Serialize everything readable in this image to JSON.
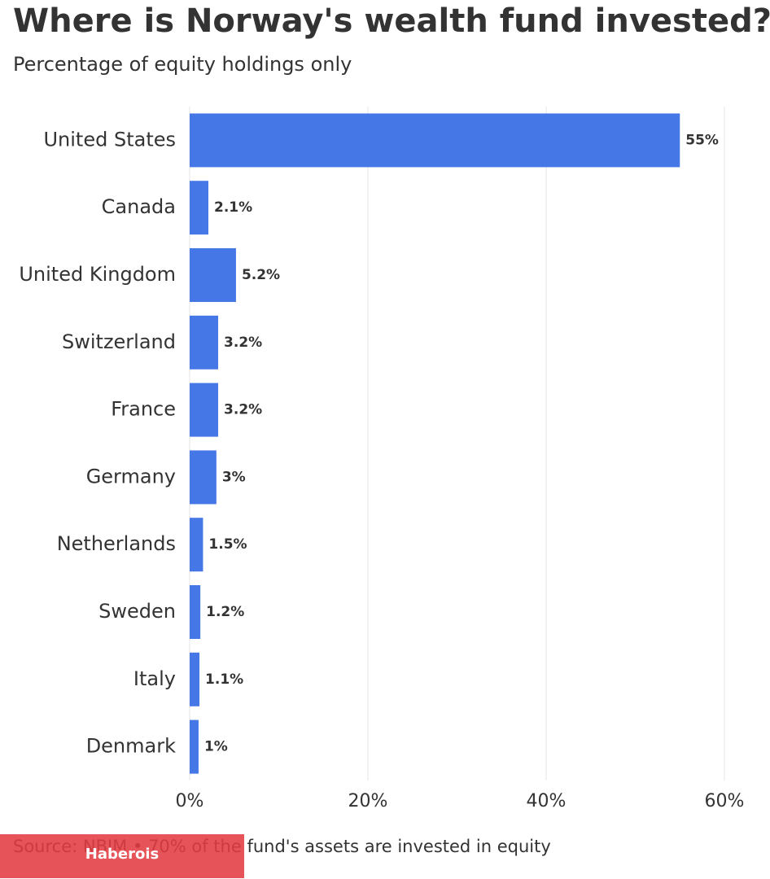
{
  "chart_data": {
    "type": "bar",
    "orientation": "horizontal",
    "title": "Where is Norway's wealth fund invested?",
    "subtitle": "Percentage of equity holdings only",
    "categories": [
      "United States",
      "Canada",
      "United Kingdom",
      "Switzerland",
      "France",
      "Germany",
      "Netherlands",
      "Sweden",
      "Italy",
      "Denmark"
    ],
    "values": [
      55,
      2.1,
      5.2,
      3.2,
      3.2,
      3,
      1.5,
      1.2,
      1.1,
      1
    ],
    "value_labels": [
      "55%",
      "2.1%",
      "5.2%",
      "3.2%",
      "3.2%",
      "3%",
      "1.5%",
      "1.2%",
      "1.1%",
      "1%"
    ],
    "color": "#4677e6",
    "xlim": [
      0,
      60
    ],
    "xticks": [
      {
        "value": 0,
        "label": "0%"
      },
      {
        "value": 20,
        "label": "20%"
      },
      {
        "value": 40,
        "label": "40%"
      },
      {
        "value": 60,
        "label": "60%"
      }
    ],
    "grid": true,
    "source": "Source: NBIM • 70% of the fund's assets are invested in equity",
    "watermark": "Haberois"
  }
}
